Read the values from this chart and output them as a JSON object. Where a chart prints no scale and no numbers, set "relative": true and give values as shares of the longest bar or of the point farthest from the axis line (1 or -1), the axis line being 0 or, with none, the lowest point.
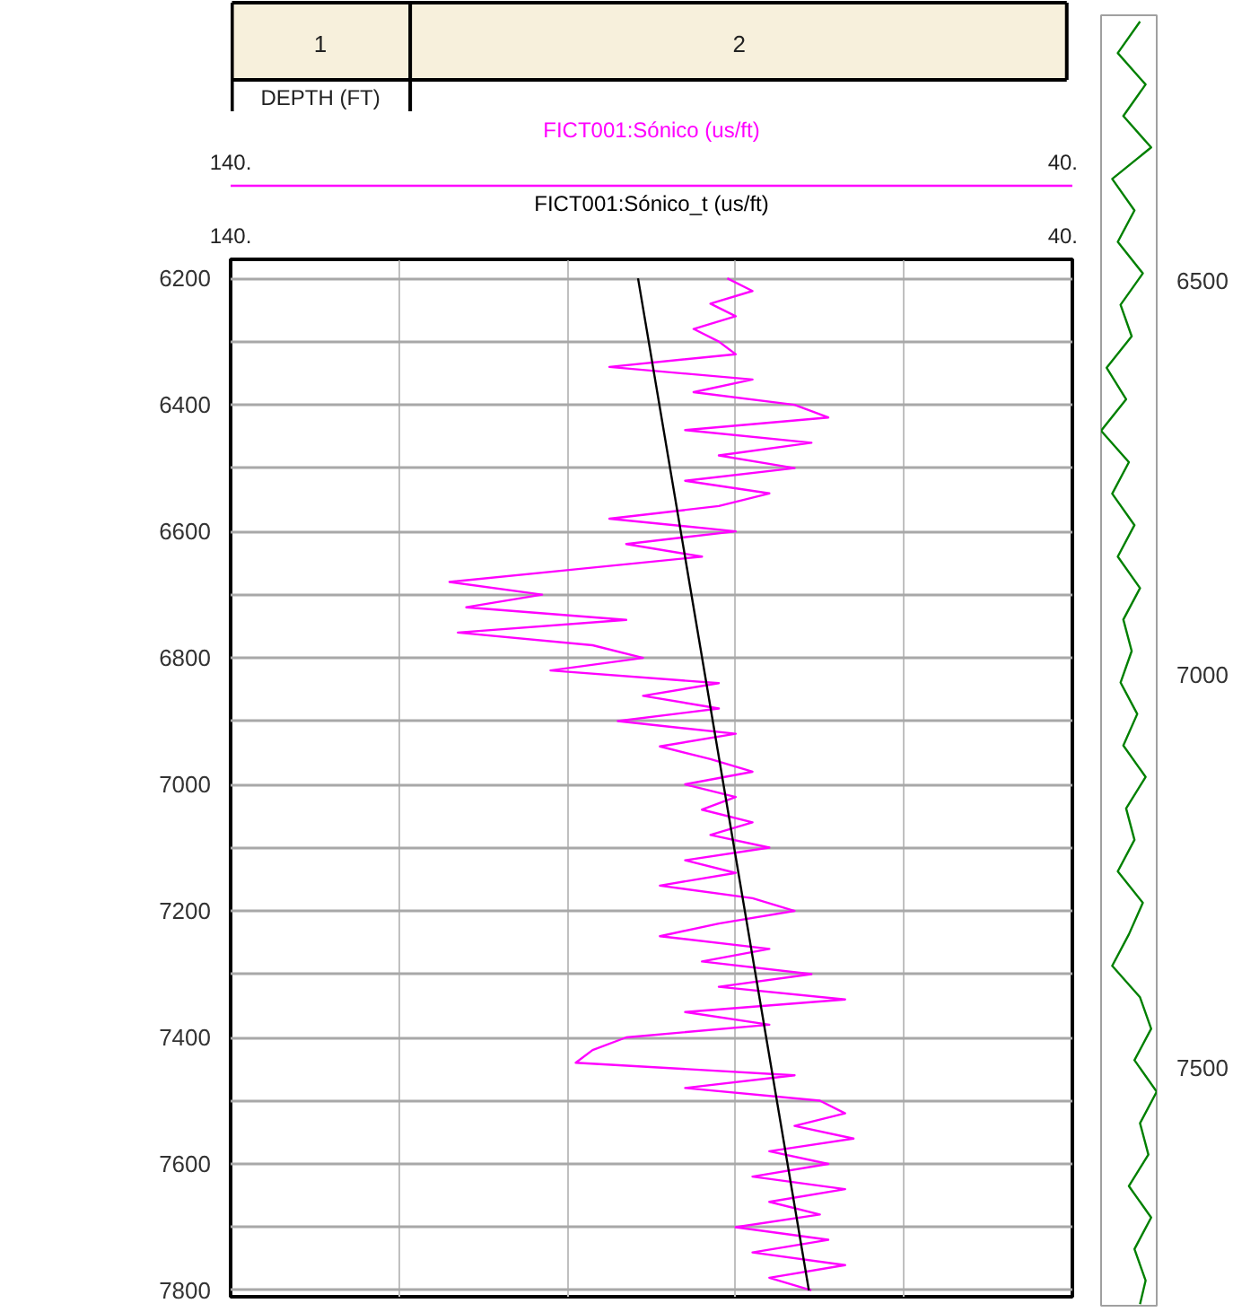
{
  "chart_data": [
    {
      "type": "line",
      "orientation": "horizontal",
      "ylabel": "DEPTH (FT)",
      "annotations": [
        "1",
        "2"
      ],
      "xlim": [
        140,
        40
      ],
      "xticks": [
        {
          "value": 140,
          "label": "140."
        },
        {
          "value": 120,
          "label": null
        },
        {
          "value": 100,
          "label": null
        },
        {
          "value": 80,
          "label": null
        },
        {
          "value": 60,
          "label": null
        },
        {
          "value": 40,
          "label": "40."
        }
      ],
      "ylim": [
        7810,
        6170
      ],
      "yticks": [
        6200,
        {
          "value": 6300,
          "label": null
        },
        6400,
        {
          "value": 6500,
          "label": null
        },
        6600,
        {
          "value": 6700,
          "label": null
        },
        6800,
        {
          "value": 6900,
          "label": null
        },
        7000,
        {
          "value": 7100,
          "label": null
        },
        7200,
        {
          "value": 7300,
          "label": null
        },
        7400,
        {
          "value": 7500,
          "label": null
        },
        7600,
        {
          "value": 7700,
          "label": null
        },
        7800
      ],
      "grid": true,
      "legend": false,
      "x": [
        6200,
        6220,
        6240,
        6260,
        6280,
        6300,
        6320,
        6340,
        6360,
        6380,
        6400,
        6420,
        6440,
        6460,
        6480,
        6500,
        6520,
        6540,
        6560,
        6580,
        6600,
        6620,
        6640,
        6660,
        6680,
        6700,
        6720,
        6740,
        6760,
        6780,
        6800,
        6820,
        6840,
        6860,
        6880,
        6900,
        6920,
        6940,
        6960,
        6980,
        7000,
        7020,
        7040,
        7060,
        7080,
        7100,
        7120,
        7140,
        7160,
        7180,
        7200,
        7220,
        7240,
        7260,
        7280,
        7300,
        7320,
        7340,
        7360,
        7380,
        7400,
        7420,
        7440,
        7460,
        7480,
        7500,
        7520,
        7540,
        7560,
        7580,
        7600,
        7620,
        7640,
        7660,
        7680,
        7700,
        7720,
        7740,
        7760,
        7780,
        7800
      ],
      "series": [
        {
          "name": "FICT001:Sónico (us/ft)",
          "color": "#ff00ff",
          "values": [
            81,
            78,
            83,
            80,
            85,
            82,
            80,
            95,
            78,
            85,
            73,
            69,
            86,
            71,
            82,
            73,
            86,
            76,
            82,
            95,
            80,
            93,
            84,
            99,
            114,
            103,
            112,
            93,
            113,
            97,
            91,
            102,
            82,
            91,
            82,
            94,
            80,
            89,
            83,
            78,
            86,
            80,
            84,
            78,
            83,
            76,
            86,
            80,
            89,
            78,
            73,
            82,
            89,
            76,
            84,
            71,
            82,
            67,
            86,
            76,
            93,
            97,
            99,
            73,
            86,
            70,
            67,
            73,
            66,
            76,
            69,
            78,
            67,
            76,
            70,
            80,
            69,
            78,
            67,
            76,
            71
          ]
        },
        {
          "name": "FICT001:Sónico_t (us/ft)",
          "color": "#000000",
          "x": [
            6200,
            7800
          ],
          "values": [
            91.6,
            71.3
          ]
        }
      ]
    },
    {
      "type": "line",
      "orientation": "horizontal",
      "relative": true,
      "ylim": [
        7802,
        6162
      ],
      "yticks": [
        6500,
        7000,
        7500
      ],
      "grid": false,
      "legend": false,
      "x": [
        6170,
        6210,
        6250,
        6290,
        6330,
        6370,
        6410,
        6450,
        6490,
        6530,
        6570,
        6610,
        6650,
        6690,
        6730,
        6770,
        6810,
        6850,
        6890,
        6930,
        6970,
        7010,
        7050,
        7090,
        7130,
        7170,
        7210,
        7250,
        7290,
        7330,
        7370,
        7410,
        7450,
        7490,
        7530,
        7570,
        7610,
        7650,
        7690,
        7730,
        7770,
        7800
      ],
      "series": [
        {
          "color": "#008000",
          "values": [
            0.7,
            0.3,
            0.8,
            0.4,
            0.9,
            0.2,
            0.6,
            0.3,
            0.75,
            0.35,
            0.55,
            0.1,
            0.45,
            0.0,
            0.5,
            0.2,
            0.6,
            0.3,
            0.7,
            0.4,
            0.55,
            0.35,
            0.65,
            0.4,
            0.8,
            0.45,
            0.6,
            0.3,
            0.75,
            0.5,
            0.2,
            0.7,
            0.9,
            0.6,
            1.0,
            0.7,
            0.85,
            0.5,
            0.9,
            0.6,
            0.8,
            0.7
          ]
        }
      ]
    }
  ]
}
